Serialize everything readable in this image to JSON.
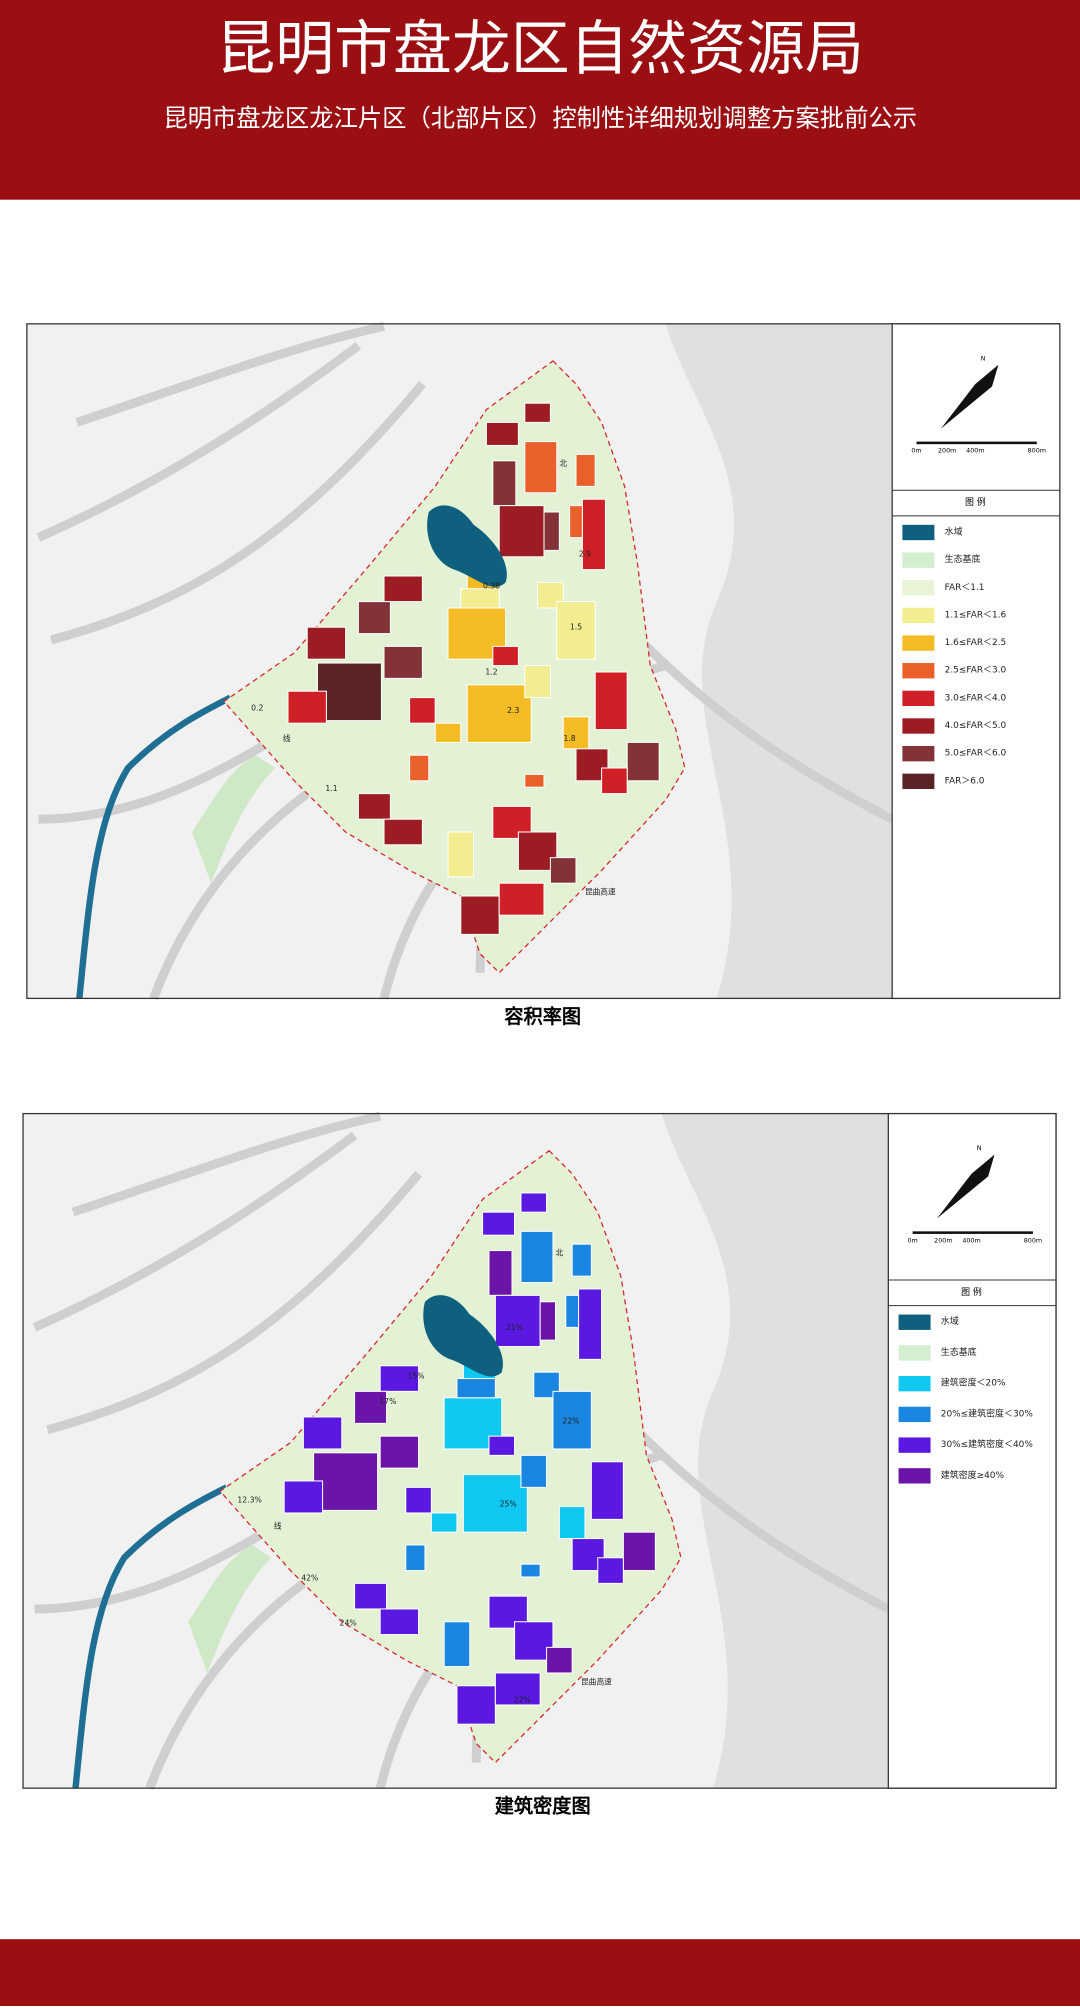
{
  "header": {
    "title": "昆明市盘龙区自然资源局",
    "subtitle": "昆明市盘龙区龙江片区（北部片区）控制性详细规划调整方案批前公示"
  },
  "maps": [
    {
      "caption": "容积率图",
      "north": "N",
      "scale": [
        "0m",
        "200m",
        "400m",
        "800m"
      ],
      "legend_title": "图 例",
      "legend": [
        {
          "label": "水域",
          "color": "#0f5f7e"
        },
        {
          "label": "生态基底",
          "color": "#d5eed1"
        },
        {
          "label": "FAR＜1.1",
          "color": "#e9f3d7"
        },
        {
          "label": "1.1≤FAR＜1.6",
          "color": "#f3ed92"
        },
        {
          "label": "1.6≤FAR＜2.5",
          "color": "#f3bc24"
        },
        {
          "label": "2.5≤FAR＜3.0",
          "color": "#e9602a"
        },
        {
          "label": "3.0≤FAR＜4.0",
          "color": "#cf2027"
        },
        {
          "label": "4.0≤FAR＜5.0",
          "color": "#9c1c24"
        },
        {
          "label": "5.0≤FAR＜6.0",
          "color": "#833338"
        },
        {
          "label": "FAR＞6.0",
          "color": "#5a2326"
        }
      ],
      "labels": [
        "0.2",
        "1.1",
        "2.3",
        "1.5",
        "2.9",
        "0.38",
        "线",
        "北",
        "昆曲高速",
        "1.2",
        "1.8"
      ]
    },
    {
      "caption": "建筑密度图",
      "north": "N",
      "scale": [
        "0m",
        "200m",
        "400m",
        "800m"
      ],
      "legend_title": "图 例",
      "legend": [
        {
          "label": "水域",
          "color": "#0f5f7e"
        },
        {
          "label": "生态基底",
          "color": "#d5eed1"
        },
        {
          "label": "建筑密度＜20%",
          "color": "#10c8f0"
        },
        {
          "label": "20%≤建筑密度＜30%",
          "color": "#1a86e0"
        },
        {
          "label": "30%≤建筑密度＜40%",
          "color": "#5a18e0"
        },
        {
          "label": "建筑密度≥40%",
          "color": "#6a15a8"
        }
      ],
      "labels": [
        "12.3%",
        "21%",
        "25%",
        "15%",
        "17%",
        "22%",
        "42%",
        "24%",
        "22%",
        "线",
        "北",
        "昆曲高速"
      ]
    }
  ]
}
